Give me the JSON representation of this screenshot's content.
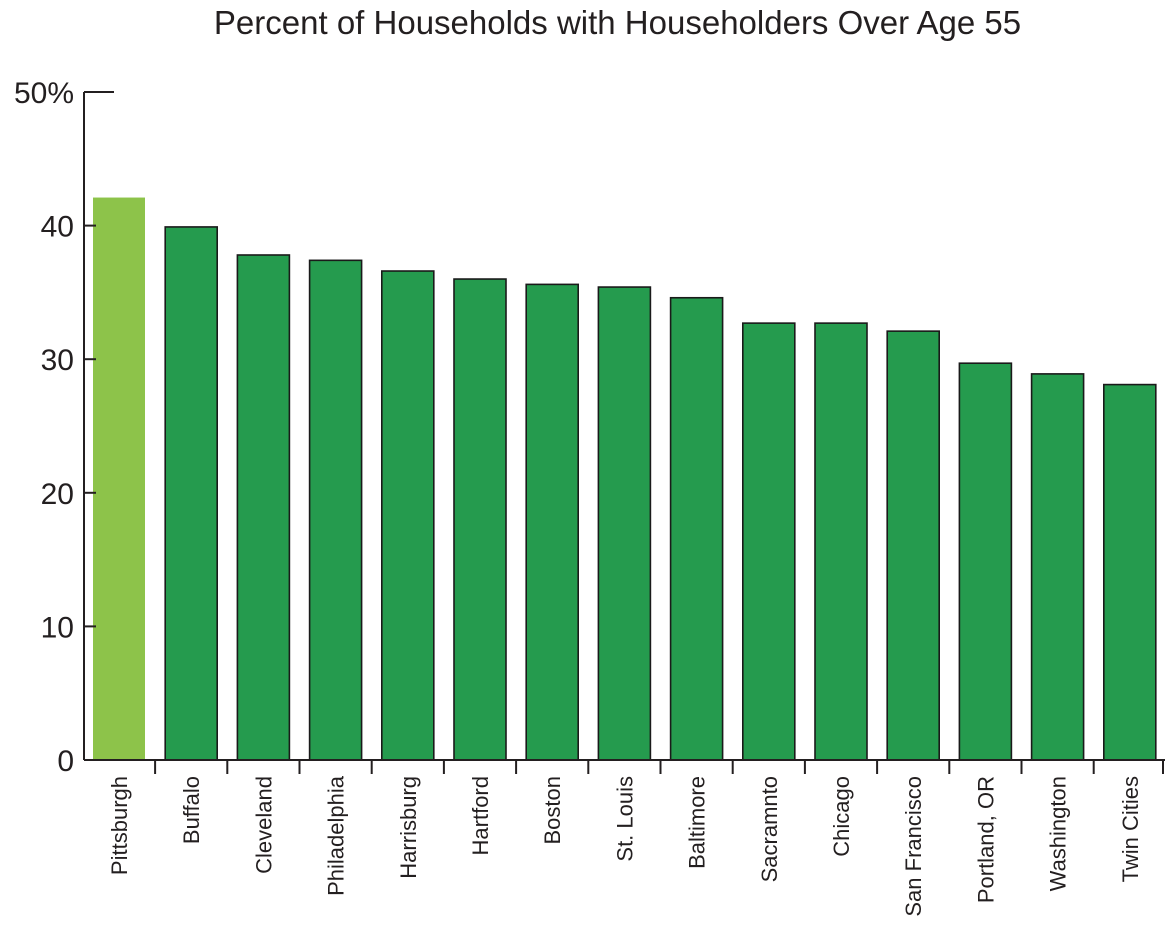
{
  "chart_data": {
    "type": "bar",
    "title": "Percent of Households with Householders Over Age 55",
    "xlabel": "",
    "ylabel": "",
    "ylim": [
      0,
      50
    ],
    "y_ticks": [
      {
        "value": 0,
        "label": "0"
      },
      {
        "value": 10,
        "label": "10"
      },
      {
        "value": 20,
        "label": "20"
      },
      {
        "value": 30,
        "label": "30"
      },
      {
        "value": 40,
        "label": "40"
      },
      {
        "value": 50,
        "label": "50%"
      }
    ],
    "categories": [
      "Pittsburgh",
      "Buffalo",
      "Cleveland",
      "Philadelphia",
      "Harrisburg",
      "Hartford",
      "Boston",
      "St. Louis",
      "Baltimore",
      "Sacramnto",
      "Chicago",
      "San Francisco",
      "Portland, OR",
      "Washington",
      "Twin Cities"
    ],
    "values": [
      42.1,
      39.9,
      37.8,
      37.4,
      36.6,
      36.0,
      35.6,
      35.4,
      34.6,
      32.7,
      32.7,
      32.1,
      29.7,
      28.9,
      28.1
    ],
    "highlight": "Pittsburgh",
    "colors": {
      "highlight": "#8dc34a",
      "bar": "#259b4e",
      "bar_outline": "#1a1a1a",
      "axis": "#231f20"
    },
    "grid": false,
    "legend": "none"
  }
}
